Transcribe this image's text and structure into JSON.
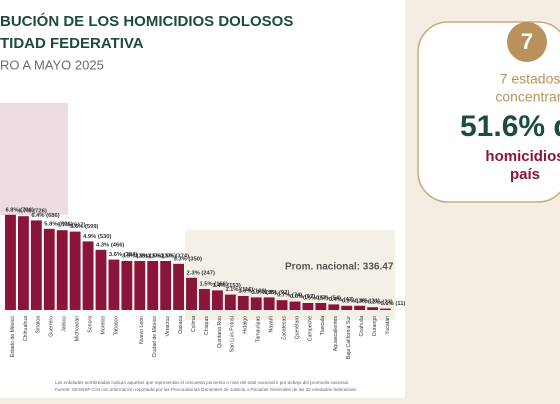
{
  "chart_data": {
    "type": "bar",
    "title": [
      "BUCIÓN DE LOS HOMICIDIOS DOLOSOS",
      "TIDAD FEDERATIVA"
    ],
    "subtitle": "RO A MAYO 2025",
    "categories": [
      "Estado de México",
      "Chihuahua",
      "Sinaloa",
      "Guerrero",
      "Jalisco",
      "Michoacán",
      "Sonora",
      "Morelos",
      "Tabasco",
      null,
      "Nuevo León",
      "Ciudad de México",
      "Veracruz",
      "Oaxaca",
      "Colima",
      "Chiapas",
      "Quintana Roo",
      "San Luis Potosí",
      "Hidalgo",
      "Tamaulipas",
      "Nayarit",
      "Zacatecas",
      "Querétaro",
      "Campeche",
      "Tlaxcala",
      "Aguascalientes",
      "Baja California Sur",
      "Coahuila",
      "Durango",
      "Yucatán"
    ],
    "values": [
      6.8,
      6.7,
      6.4,
      5.8,
      5.7,
      5.6,
      4.9,
      4.3,
      3.6,
      3.5,
      3.5,
      3.5,
      3.5,
      3.3,
      2.3,
      1.5,
      1.4,
      1.1,
      1.0,
      0.9,
      0.9,
      0.7,
      0.6,
      0.5,
      0.5,
      0.4,
      0.3,
      0.3,
      0.2,
      0.1
    ],
    "value_labels": [
      "6.8% (728)",
      "6.7% (726)",
      "6.4% (686)",
      "5.8% (626)",
      "5.7% (617)",
      "5.6% (599)",
      "4.9% (530)",
      "4.3% (466)",
      "3.6% (384)",
      "3.5% (381)",
      "3.5% (376)",
      "3.5% (375)",
      "3.5% (374)",
      "3.3% (350)",
      "2.3% (247)",
      "1.5% (166)",
      "1.4% (153)",
      "1.1% (116)",
      "1.0% (109)",
      "0.9% (95)",
      "0.9% (92)",
      "0.7% (74)",
      "0.6% (67)",
      "0.5% (57)",
      "0.5% (54)",
      "0.4% (47)",
      "0.3% (36)",
      "0.3% (31)",
      "0.2% (23)",
      "0.1% (11)"
    ],
    "color": "#8a1538",
    "annotation": "Prom. nacional: 336.47",
    "notes": [
      "Las entidades sombreadas indican aquellas que representan el cincuenta porciento o más del total nacional o por debajo del promedio nacional.",
      "Fuente: SESNSP-CNI con información reportada por las Procuradurías Generales de Justicia o Fiscalías Generales de las 32 entidades federativas."
    ]
  },
  "highlight": {
    "badge": "7",
    "lines": [
      "7 estados",
      "concentran"
    ],
    "big": "51.6% d",
    "tail": [
      "homicidios",
      "país"
    ]
  }
}
